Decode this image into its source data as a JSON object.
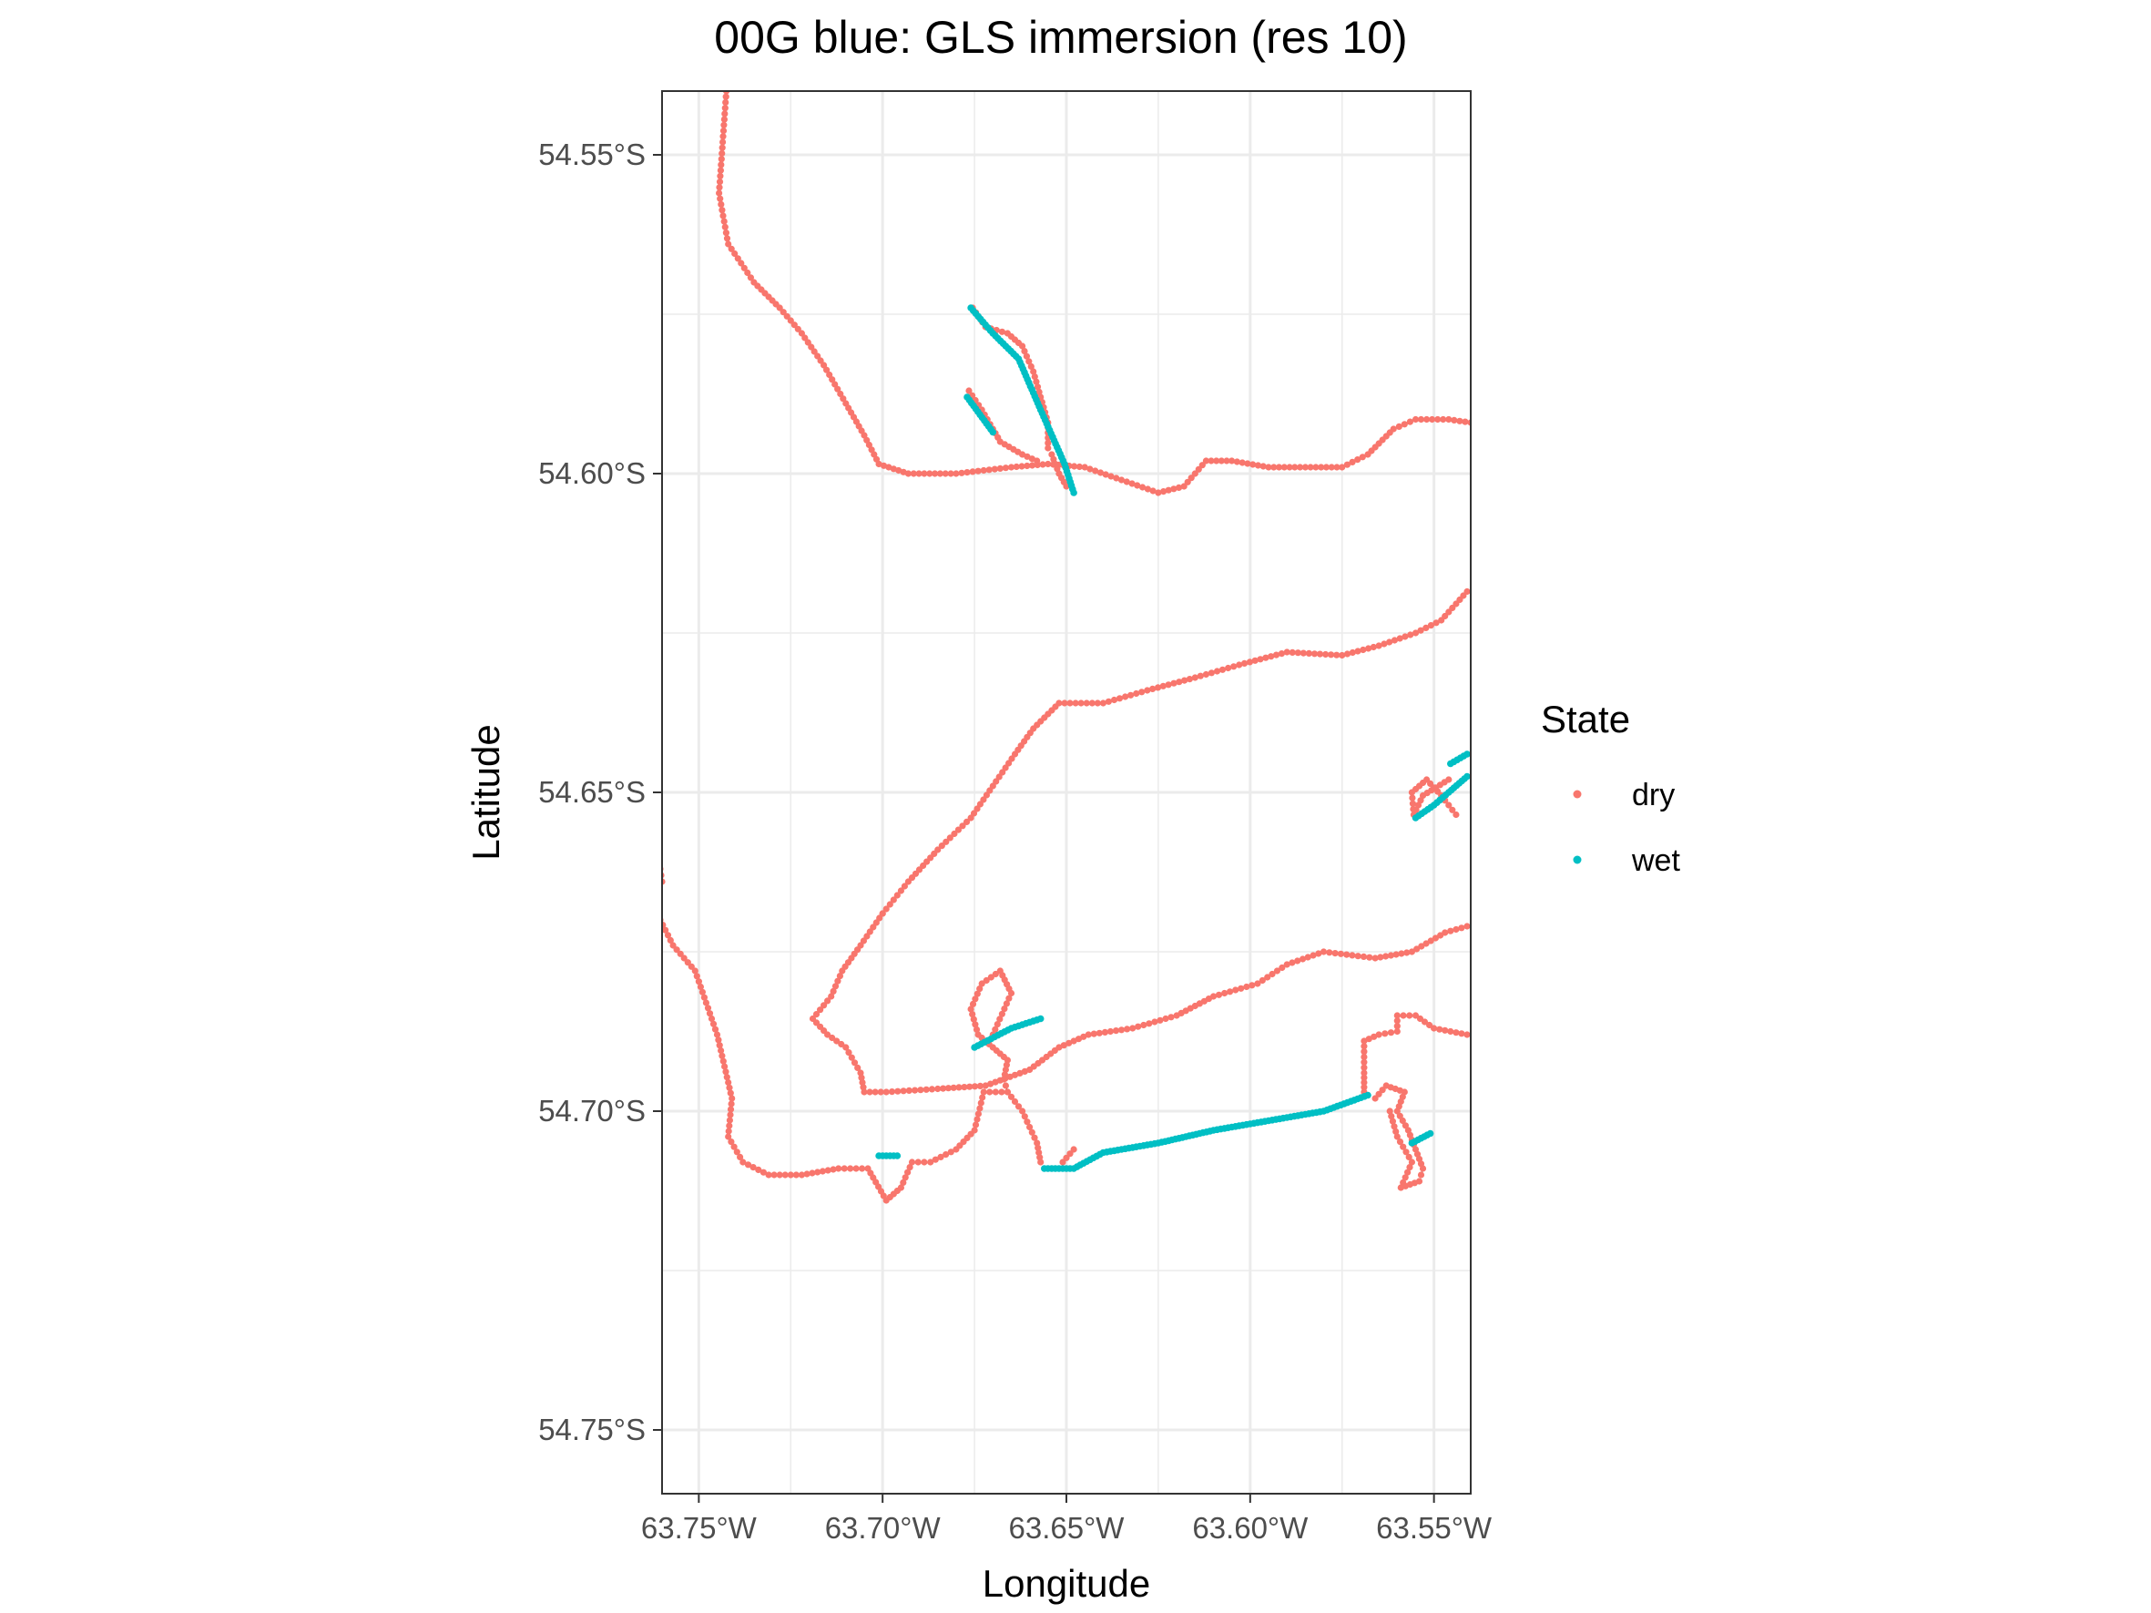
{
  "chart_data": {
    "type": "scatter",
    "title": "00G blue: GLS immersion (res 10)",
    "xlabel": "Longitude",
    "ylabel": "Latitude",
    "xlim": [
      -63.76,
      -63.54
    ],
    "ylim": [
      -54.76,
      -54.54
    ],
    "x_ticks": [
      -63.75,
      -63.7,
      -63.65,
      -63.6,
      -63.55
    ],
    "x_tick_labels": [
      "63.75°W",
      "63.70°W",
      "63.65°W",
      "63.60°W",
      "63.55°W"
    ],
    "y_ticks": [
      -54.55,
      -54.6,
      -54.65,
      -54.7,
      -54.75
    ],
    "y_tick_labels": [
      "54.55°S",
      "54.60°S",
      "54.65°S",
      "54.70°S",
      "54.75°S"
    ],
    "grid": true,
    "legend": {
      "title": "State",
      "position": "right"
    },
    "colors": {
      "dry": "#F8766D",
      "wet": "#00BFC4",
      "path": "#000000",
      "grid": "#ebebeb",
      "panel_border": "#333333"
    },
    "series": [
      {
        "name": "dry",
        "segments": [
          [
            [
              -63.7425,
              -54.54
            ],
            [
              -63.7435,
              -54.548
            ],
            [
              -63.7445,
              -54.556
            ],
            [
              -63.742,
              -54.564
            ],
            [
              -63.735,
              -54.57
            ],
            [
              -63.728,
              -54.574
            ],
            [
              -63.722,
              -54.578
            ],
            [
              -63.716,
              -54.583
            ],
            [
              -63.71,
              -54.589
            ],
            [
              -63.705,
              -54.594
            ],
            [
              -63.701,
              -54.5985
            ],
            [
              -63.693,
              -54.6
            ],
            [
              -63.68,
              -54.6
            ],
            [
              -63.665,
              -54.599
            ],
            [
              -63.655,
              -54.5985
            ],
            [
              -63.645,
              -54.599
            ],
            [
              -63.635,
              -54.601
            ],
            [
              -63.625,
              -54.603
            ],
            [
              -63.618,
              -54.602
            ],
            [
              -63.612,
              -54.598
            ],
            [
              -63.605,
              -54.598
            ],
            [
              -63.595,
              -54.599
            ],
            [
              -63.585,
              -54.599
            ],
            [
              -63.575,
              -54.599
            ],
            [
              -63.568,
              -54.597
            ],
            [
              -63.561,
              -54.593
            ],
            [
              -63.555,
              -54.5915
            ],
            [
              -63.546,
              -54.5915
            ],
            [
              -63.54,
              -54.592
            ]
          ],
          [
            [
              -63.6755,
              -54.574
            ],
            [
              -63.672,
              -54.577
            ],
            [
              -63.666,
              -54.578
            ],
            [
              -63.662,
              -54.58
            ],
            [
              -63.659,
              -54.584
            ],
            [
              -63.657,
              -54.588
            ],
            [
              -63.655,
              -54.592
            ],
            [
              -63.655,
              -54.596
            ]
          ],
          [
            [
              -63.6765,
              -54.587
            ],
            [
              -63.673,
              -54.59
            ],
            [
              -63.67,
              -54.593
            ],
            [
              -63.668,
              -54.595
            ],
            [
              -63.662,
              -54.597
            ],
            [
              -63.658,
              -54.598
            ]
          ],
          [
            [
              -63.654,
              -54.597
            ],
            [
              -63.652,
              -54.6
            ],
            [
              -63.65,
              -54.602
            ]
          ],
          [
            [
              -63.7,
              -54.669
            ],
            [
              -63.693,
              -54.664
            ],
            [
              -63.685,
              -54.659
            ],
            [
              -63.676,
              -54.654
            ],
            [
              -63.67,
              -54.649
            ],
            [
              -63.664,
              -54.644
            ],
            [
              -63.659,
              -54.64
            ],
            [
              -63.652,
              -54.636
            ],
            [
              -63.64,
              -54.636
            ],
            [
              -63.628,
              -54.634
            ],
            [
              -63.615,
              -54.632
            ],
            [
              -63.603,
              -54.63
            ],
            [
              -63.59,
              -54.628
            ],
            [
              -63.575,
              -54.6285
            ],
            [
              -63.565,
              -54.627
            ],
            [
              -63.555,
              -54.625
            ],
            [
              -63.548,
              -54.623
            ],
            [
              -63.541,
              -54.6185
            ]
          ],
          [
            [
              -63.7,
              -54.669
            ],
            [
              -63.706,
              -54.674
            ],
            [
              -63.711,
              -54.678
            ],
            [
              -63.714,
              -54.682
            ],
            [
              -63.719,
              -54.6855
            ],
            [
              -63.715,
              -54.688
            ],
            [
              -63.71,
              -54.69
            ],
            [
              -63.706,
              -54.694
            ],
            [
              -63.705,
              -54.697
            ],
            [
              -63.699,
              -54.697
            ],
            [
              -63.685,
              -54.6965
            ],
            [
              -63.672,
              -54.696
            ],
            [
              -63.66,
              -54.6935
            ],
            [
              -63.652,
              -54.69
            ],
            [
              -63.644,
              -54.688
            ],
            [
              -63.632,
              -54.687
            ],
            [
              -63.62,
              -54.685
            ],
            [
              -63.61,
              -54.682
            ],
            [
              -63.598,
              -54.68
            ],
            [
              -63.59,
              -54.677
            ],
            [
              -63.58,
              -54.675
            ],
            [
              -63.566,
              -54.676
            ],
            [
              -63.556,
              -54.675
            ],
            [
              -63.547,
              -54.672
            ],
            [
              -63.541,
              -54.671
            ]
          ],
          [
            [
              -63.67,
              -54.688
            ],
            [
              -63.665,
              -54.6815
            ],
            [
              -63.668,
              -54.678
            ],
            [
              -63.673,
              -54.68
            ],
            [
              -63.676,
              -54.684
            ],
            [
              -63.674,
              -54.688
            ],
            [
              -63.67,
              -54.69
            ],
            [
              -63.666,
              -54.692
            ],
            [
              -63.667,
              -54.695
            ],
            [
              -63.666,
              -54.697
            ],
            [
              -63.662,
              -54.7
            ],
            [
              -63.658,
              -54.705
            ],
            [
              -63.657,
              -54.708
            ]
          ],
          [
            [
              -63.7605,
              -54.67
            ],
            [
              -63.757,
              -54.674
            ],
            [
              -63.751,
              -54.678
            ],
            [
              -63.748,
              -54.683
            ],
            [
              -63.745,
              -54.688
            ],
            [
              -63.743,
              -54.693
            ],
            [
              -63.741,
              -54.698
            ],
            [
              -63.742,
              -54.704
            ],
            [
              -63.738,
              -54.708
            ],
            [
              -63.731,
              -54.71
            ],
            [
              -63.722,
              -54.71
            ],
            [
              -63.712,
              -54.709
            ],
            [
              -63.704,
              -54.709
            ],
            [
              -63.699,
              -54.714
            ],
            [
              -63.695,
              -54.712
            ],
            [
              -63.692,
              -54.708
            ],
            [
              -63.687,
              -54.708
            ],
            [
              -63.68,
              -54.706
            ],
            [
              -63.675,
              -54.703
            ],
            [
              -63.6725,
              -54.697
            ],
            [
              -63.666,
              -54.697
            ]
          ],
          [
            [
              -63.651,
              -54.708
            ],
            [
              -63.648,
              -54.706
            ]
          ],
          [
            [
              -63.7605,
              -54.662
            ],
            [
              -63.76,
              -54.664
            ]
          ],
          [
            [
              -63.566,
              -54.698
            ],
            [
              -63.563,
              -54.696
            ],
            [
              -63.558,
              -54.697
            ],
            [
              -63.56,
              -54.7
            ],
            [
              -63.557,
              -54.703
            ],
            [
              -63.555,
              -54.706
            ],
            [
              -63.553,
              -54.709
            ],
            [
              -63.554,
              -54.711
            ],
            [
              -63.559,
              -54.712
            ],
            [
              -63.556,
              -54.708
            ],
            [
              -63.56,
              -54.704
            ],
            [
              -63.562,
              -54.7
            ]
          ],
          [
            [
              -63.569,
              -54.697
            ],
            [
              -63.569,
              -54.694
            ],
            [
              -63.569,
              -54.689
            ],
            [
              -63.565,
              -54.688
            ],
            [
              -63.56,
              -54.6875
            ],
            [
              -63.56,
              -54.685
            ],
            [
              -63.555,
              -54.685
            ],
            [
              -63.55,
              -54.687
            ],
            [
              -63.541,
              -54.688
            ]
          ],
          [
            [
              -63.546,
              -54.648
            ],
            [
              -63.553,
              -54.6505
            ],
            [
              -63.5555,
              -54.6535
            ],
            [
              -63.556,
              -54.65
            ],
            [
              -63.552,
              -54.648
            ],
            [
              -63.548,
              -54.6505
            ],
            [
              -63.544,
              -54.6535
            ]
          ]
        ]
      },
      {
        "name": "wet",
        "segments": [
          [
            [
              -63.676,
              -54.574
            ],
            [
              -63.67,
              -54.578
            ],
            [
              -63.663,
              -54.582
            ],
            [
              -63.657,
              -54.59
            ],
            [
              -63.6505,
              -54.5985
            ],
            [
              -63.648,
              -54.603
            ]
          ],
          [
            [
              -63.677,
              -54.588
            ],
            [
              -63.67,
              -54.5935
            ]
          ],
          [
            [
              -63.675,
              -54.69
            ],
            [
              -63.665,
              -54.687
            ],
            [
              -63.657,
              -54.6855
            ]
          ],
          [
            [
              -63.701,
              -54.707
            ],
            [
              -63.696,
              -54.707
            ]
          ],
          [
            [
              -63.656,
              -54.709
            ],
            [
              -63.648,
              -54.709
            ],
            [
              -63.64,
              -54.7065
            ],
            [
              -63.625,
              -54.705
            ],
            [
              -63.61,
              -54.703
            ],
            [
              -63.595,
              -54.7015
            ],
            [
              -63.58,
              -54.7
            ],
            [
              -63.568,
              -54.6975
            ]
          ],
          [
            [
              -63.556,
              -54.705
            ],
            [
              -63.551,
              -54.7035
            ]
          ],
          [
            [
              -63.555,
              -54.654
            ],
            [
              -63.55,
              -54.652
            ],
            [
              -63.546,
              -54.65
            ],
            [
              -63.541,
              -54.6475
            ]
          ],
          [
            [
              -63.5455,
              -54.6455
            ],
            [
              -63.541,
              -54.644
            ]
          ]
        ]
      }
    ]
  }
}
